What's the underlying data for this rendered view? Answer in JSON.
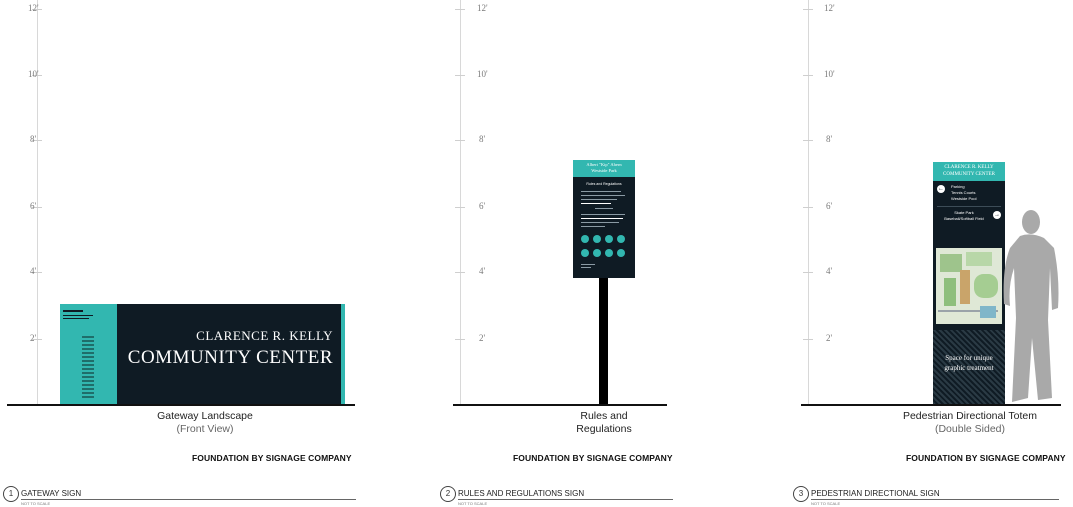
{
  "height_marks": [
    "2'",
    "4'",
    "6'",
    "8'",
    "10'",
    "12'"
  ],
  "panels": [
    {
      "number": "1",
      "sheet_title": "GATEWAY SIGN",
      "scale_note": "NOT TO SCALE",
      "caption_main": "Gateway Landscape",
      "caption_sub": "(Front View)",
      "foundation": "FOUNDATION BY SIGNAGE COMPANY",
      "sign_line1": "CLARENCE R. KELLY",
      "sign_line2": "COMMUNITY CENTER"
    },
    {
      "number": "2",
      "sheet_title": "RULES AND REGULATIONS SIGN",
      "scale_note": "NOT TO SCALE",
      "caption_main": "Rules and",
      "caption_main2": "Regulations",
      "foundation": "FOUNDATION BY SIGNAGE COMPANY",
      "sign_header1": "Albert \"Kip\" Ahern",
      "sign_header2": "Westside Park",
      "sign_subtitle": "Rules and Regulations"
    },
    {
      "number": "3",
      "sheet_title": "PEDESTRIAN DIRECTIONAL SIGN",
      "scale_note": "NOT TO SCALE",
      "caption_main": "Pedestrian Directional Totem",
      "caption_sub": "(Double Sided)",
      "foundation": "FOUNDATION BY SIGNAGE COMPANY",
      "sign_header1": "CLARENCE R. KELLY",
      "sign_header2": "COMMUNITY CENTER",
      "dir1_lines": [
        "Parking",
        "Tennis Courts",
        "Westside Pool"
      ],
      "dir2_lines": [
        "Skate Park",
        "Baseball/Softball Field"
      ],
      "graphic_text1": "Space for unique",
      "graphic_text2": "graphic treatment"
    }
  ],
  "colors": {
    "sign_dark": "#0f1b24",
    "sign_teal": "#32b7b0",
    "silhouette": "#a9a9a9"
  }
}
